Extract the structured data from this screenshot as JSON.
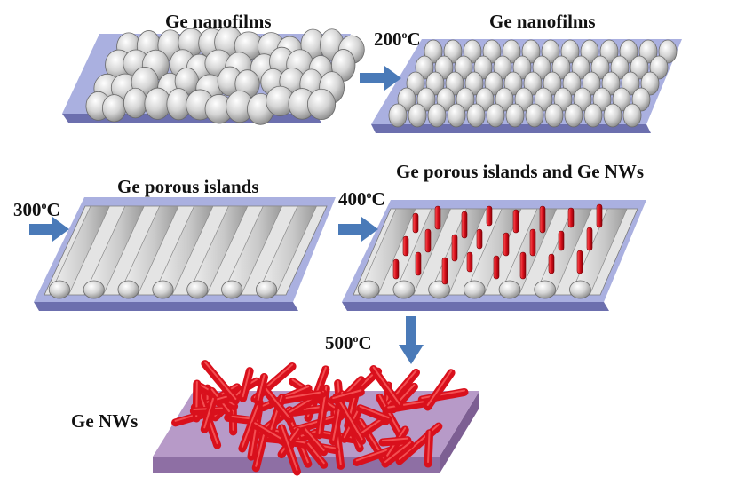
{
  "stages": [
    {
      "title": "Ge nanofilms"
    },
    {
      "title": "Ge nanofilms"
    },
    {
      "title": "Ge porous  islands"
    },
    {
      "title": "Ge porous  islands and Ge NWs"
    },
    {
      "title": "Ge NWs"
    }
  ],
  "temperatures": [
    {
      "value": "200",
      "unit_sup": "o",
      "unit": "C"
    },
    {
      "value": "300",
      "unit_sup": "o",
      "unit": "C"
    },
    {
      "value": "400",
      "unit_sup": "o",
      "unit": "C"
    },
    {
      "value": "500",
      "unit_sup": "o",
      "unit": "C"
    }
  ],
  "colors": {
    "substrate_top": "#aab0e0",
    "substrate_side": "#6c6fae",
    "sphere": "#d0d0d0",
    "sphere_edge": "#6a6a6a",
    "island_stripe": "#bdbdbd",
    "nanowire": "#d9101c",
    "arrow": "#4a7ab8",
    "final_substrate_top": "#b79ac8",
    "final_substrate_side": "#8e6fa4"
  },
  "icons": [
    "right-arrow-icon",
    "down-arrow-icon"
  ]
}
